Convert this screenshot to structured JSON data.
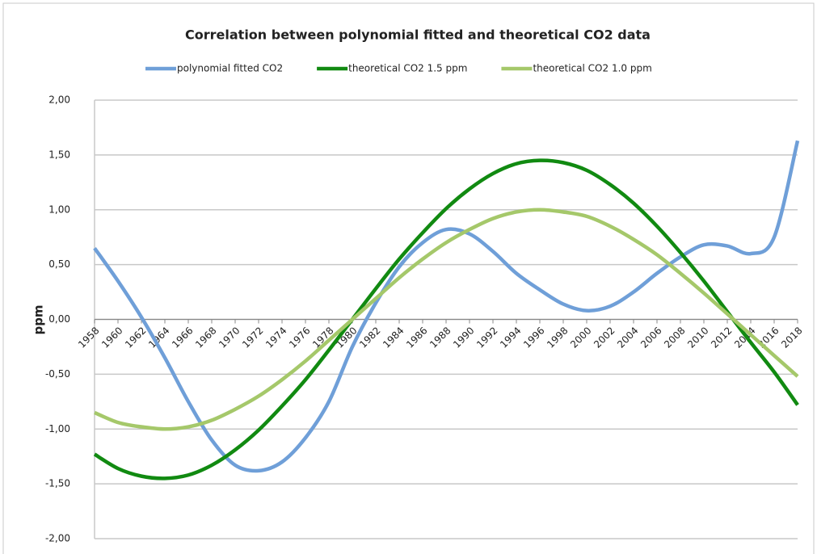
{
  "chart_data": {
    "type": "line",
    "title": "Correlation between polynomial fitted and theoretical CO2 data",
    "y_label": "ppm",
    "x": [
      1958,
      1960,
      1962,
      1964,
      1966,
      1968,
      1970,
      1972,
      1974,
      1976,
      1978,
      1980,
      1982,
      1984,
      1986,
      1988,
      1990,
      1992,
      1994,
      1996,
      1998,
      2000,
      2002,
      2004,
      2006,
      2008,
      2010,
      2012,
      2014,
      2016,
      2018
    ],
    "xlim": [
      1958,
      2018
    ],
    "xticks": [
      1958,
      1960,
      1962,
      1964,
      1966,
      1968,
      1970,
      1972,
      1974,
      1976,
      1978,
      1980,
      1982,
      1984,
      1986,
      1988,
      1990,
      1992,
      1994,
      1996,
      1998,
      2000,
      2002,
      2004,
      2006,
      2008,
      2010,
      2012,
      2014,
      2016,
      2018
    ],
    "ylim": [
      -2,
      2
    ],
    "yticks": [
      {
        "value": -2,
        "label": "-2,00"
      },
      {
        "value": -1.5,
        "label": "-1,50"
      },
      {
        "value": -1,
        "label": "-1,00"
      },
      {
        "value": -0.5,
        "label": "-0,50"
      },
      {
        "value": 0,
        "label": "0,00"
      },
      {
        "value": 0.5,
        "label": "0,50"
      },
      {
        "value": 1,
        "label": "1,00"
      },
      {
        "value": 1.5,
        "label": "1,50"
      },
      {
        "value": 2,
        "label": "2,00"
      }
    ],
    "grid": true,
    "legend": "top",
    "series": [
      {
        "name": "polynomial fitted CO2",
        "color": "#6f9fd8",
        "values": [
          0.65,
          0.35,
          0.02,
          -0.35,
          -0.75,
          -1.1,
          -1.33,
          -1.38,
          -1.3,
          -1.08,
          -0.75,
          -0.25,
          0.15,
          0.48,
          0.7,
          0.82,
          0.78,
          0.62,
          0.42,
          0.27,
          0.14,
          0.08,
          0.12,
          0.25,
          0.42,
          0.57,
          0.68,
          0.67,
          0.6,
          0.75,
          1.63
        ]
      },
      {
        "name": "theoretical CO2 1.5 ppm",
        "color": "#118a11",
        "values": [
          -1.23,
          -1.36,
          -1.43,
          -1.45,
          -1.42,
          -1.33,
          -1.19,
          -1.01,
          -0.79,
          -0.55,
          -0.28,
          0,
          0.28,
          0.55,
          0.79,
          1.01,
          1.19,
          1.33,
          1.42,
          1.45,
          1.43,
          1.36,
          1.23,
          1.06,
          0.85,
          0.61,
          0.35,
          0.07,
          -0.21,
          -0.48,
          -0.78
        ]
      },
      {
        "name": "theoretical CO2 1.0 ppm",
        "color": "#a5c86a",
        "values": [
          -0.85,
          -0.94,
          -0.98,
          -1.0,
          -0.98,
          -0.92,
          -0.82,
          -0.7,
          -0.55,
          -0.38,
          -0.19,
          0,
          0.19,
          0.38,
          0.55,
          0.7,
          0.82,
          0.92,
          0.98,
          1.0,
          0.98,
          0.94,
          0.85,
          0.73,
          0.59,
          0.42,
          0.24,
          0.05,
          -0.14,
          -0.33,
          -0.52
        ]
      }
    ]
  }
}
